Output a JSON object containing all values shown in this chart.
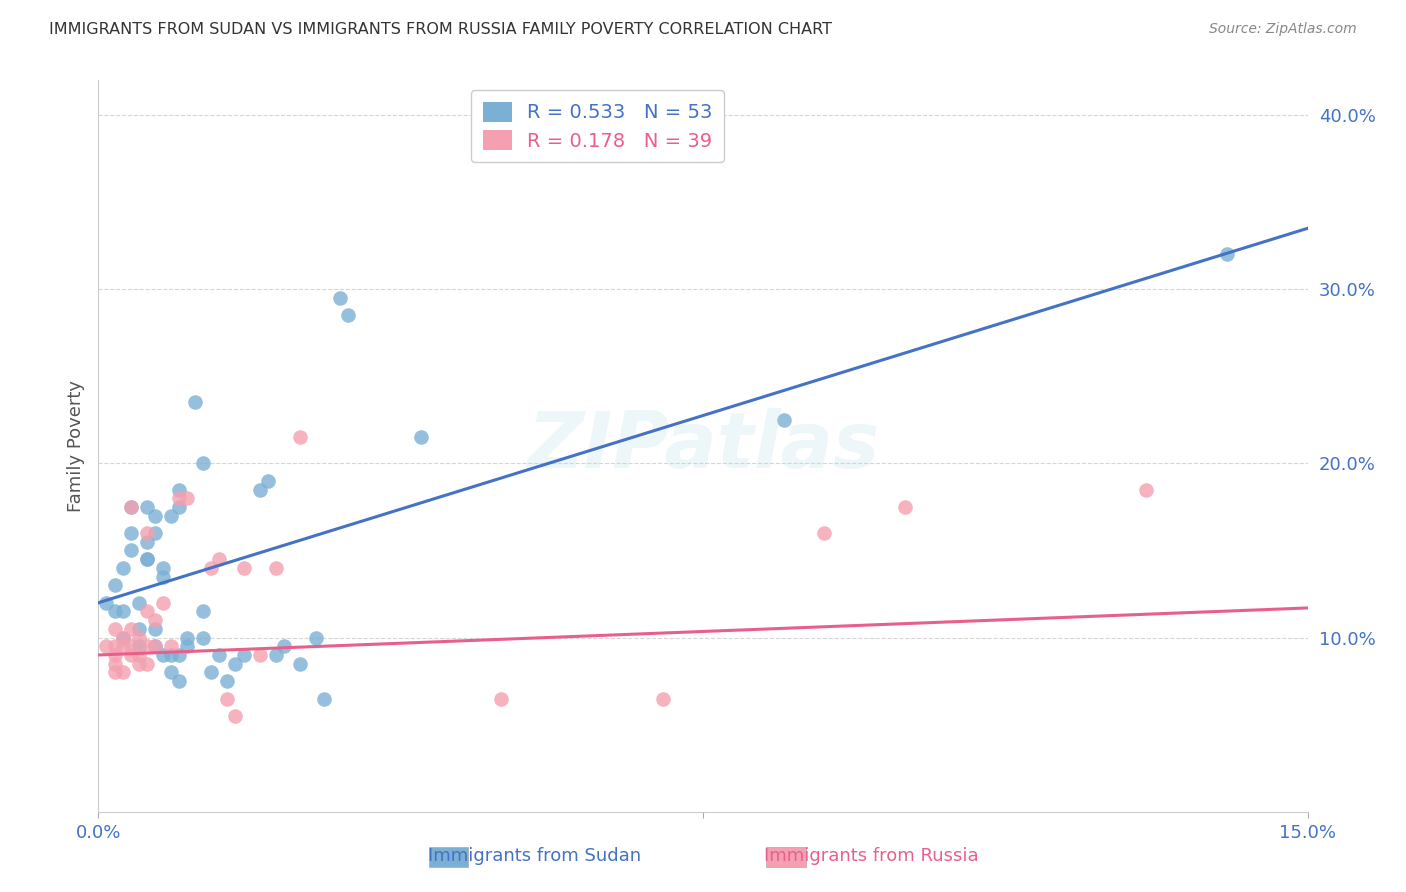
{
  "title": "IMMIGRANTS FROM SUDAN VS IMMIGRANTS FROM RUSSIA FAMILY POVERTY CORRELATION CHART",
  "source": "Source: ZipAtlas.com",
  "ylabel_label": "Family Poverty",
  "sudan_color": "#7bafd4",
  "russia_color": "#f4a0b0",
  "sudan_line_color": "#4472c4",
  "russia_line_color": "#e8608a",
  "watermark_text": "ZIPatlas",
  "xlim": [
    0.0,
    0.15
  ],
  "ylim": [
    0.0,
    0.42
  ],
  "sudan_R": 0.533,
  "russia_R": 0.178,
  "sudan_N": 53,
  "russia_N": 39,
  "background_color": "#ffffff",
  "grid_color": "#cccccc",
  "title_color": "#333333",
  "tick_label_color": "#4472c4",
  "sudan_points": [
    [
      0.001,
      0.12
    ],
    [
      0.002,
      0.13
    ],
    [
      0.002,
      0.115
    ],
    [
      0.003,
      0.14
    ],
    [
      0.003,
      0.115
    ],
    [
      0.003,
      0.1
    ],
    [
      0.004,
      0.16
    ],
    [
      0.004,
      0.175
    ],
    [
      0.004,
      0.15
    ],
    [
      0.005,
      0.12
    ],
    [
      0.005,
      0.105
    ],
    [
      0.005,
      0.095
    ],
    [
      0.006,
      0.175
    ],
    [
      0.006,
      0.155
    ],
    [
      0.006,
      0.145
    ],
    [
      0.006,
      0.145
    ],
    [
      0.007,
      0.16
    ],
    [
      0.007,
      0.17
    ],
    [
      0.007,
      0.105
    ],
    [
      0.007,
      0.095
    ],
    [
      0.008,
      0.14
    ],
    [
      0.008,
      0.135
    ],
    [
      0.008,
      0.09
    ],
    [
      0.009,
      0.17
    ],
    [
      0.009,
      0.09
    ],
    [
      0.009,
      0.08
    ],
    [
      0.01,
      0.185
    ],
    [
      0.01,
      0.175
    ],
    [
      0.01,
      0.09
    ],
    [
      0.01,
      0.075
    ],
    [
      0.011,
      0.1
    ],
    [
      0.011,
      0.095
    ],
    [
      0.012,
      0.235
    ],
    [
      0.013,
      0.2
    ],
    [
      0.013,
      0.115
    ],
    [
      0.013,
      0.1
    ],
    [
      0.014,
      0.08
    ],
    [
      0.015,
      0.09
    ],
    [
      0.016,
      0.075
    ],
    [
      0.017,
      0.085
    ],
    [
      0.018,
      0.09
    ],
    [
      0.02,
      0.185
    ],
    [
      0.021,
      0.19
    ],
    [
      0.022,
      0.09
    ],
    [
      0.023,
      0.095
    ],
    [
      0.025,
      0.085
    ],
    [
      0.027,
      0.1
    ],
    [
      0.028,
      0.065
    ],
    [
      0.03,
      0.295
    ],
    [
      0.031,
      0.285
    ],
    [
      0.04,
      0.215
    ],
    [
      0.085,
      0.225
    ],
    [
      0.14,
      0.32
    ]
  ],
  "russia_points": [
    [
      0.001,
      0.095
    ],
    [
      0.002,
      0.105
    ],
    [
      0.002,
      0.095
    ],
    [
      0.002,
      0.09
    ],
    [
      0.002,
      0.085
    ],
    [
      0.002,
      0.08
    ],
    [
      0.003,
      0.1
    ],
    [
      0.003,
      0.095
    ],
    [
      0.003,
      0.08
    ],
    [
      0.004,
      0.175
    ],
    [
      0.004,
      0.105
    ],
    [
      0.004,
      0.095
    ],
    [
      0.004,
      0.09
    ],
    [
      0.005,
      0.1
    ],
    [
      0.005,
      0.09
    ],
    [
      0.005,
      0.085
    ],
    [
      0.006,
      0.16
    ],
    [
      0.006,
      0.115
    ],
    [
      0.006,
      0.095
    ],
    [
      0.006,
      0.085
    ],
    [
      0.007,
      0.11
    ],
    [
      0.007,
      0.095
    ],
    [
      0.008,
      0.12
    ],
    [
      0.009,
      0.095
    ],
    [
      0.01,
      0.18
    ],
    [
      0.011,
      0.18
    ],
    [
      0.014,
      0.14
    ],
    [
      0.015,
      0.145
    ],
    [
      0.016,
      0.065
    ],
    [
      0.017,
      0.055
    ],
    [
      0.018,
      0.14
    ],
    [
      0.02,
      0.09
    ],
    [
      0.022,
      0.14
    ],
    [
      0.025,
      0.215
    ],
    [
      0.05,
      0.065
    ],
    [
      0.07,
      0.065
    ],
    [
      0.09,
      0.16
    ],
    [
      0.1,
      0.175
    ],
    [
      0.13,
      0.185
    ]
  ],
  "sudan_line_y0": 0.12,
  "sudan_line_y1": 0.335,
  "russia_line_y0": 0.09,
  "russia_line_y1": 0.117
}
